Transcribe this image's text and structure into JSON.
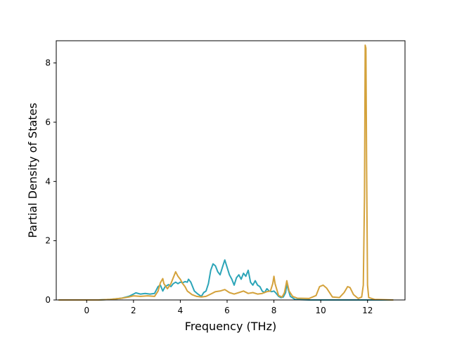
{
  "chart_data": {
    "type": "line",
    "title": "",
    "xlabel": "Frequency (THz)",
    "ylabel": "Partial Density of States",
    "xlim": [
      -1.3,
      13.6
    ],
    "ylim": [
      0,
      8.75
    ],
    "x_ticks": [
      0,
      2,
      4,
      6,
      8,
      10,
      12
    ],
    "y_ticks": [
      0,
      2,
      4,
      6,
      8
    ],
    "grid": false,
    "legend": "none",
    "series": [
      {
        "color": "#2ca5b8",
        "points": [
          [
            -1.2,
            0.0
          ],
          [
            0.5,
            0.0
          ],
          [
            1.0,
            0.02
          ],
          [
            1.5,
            0.06
          ],
          [
            1.8,
            0.12
          ],
          [
            2.0,
            0.2
          ],
          [
            2.1,
            0.24
          ],
          [
            2.3,
            0.2
          ],
          [
            2.5,
            0.22
          ],
          [
            2.7,
            0.2
          ],
          [
            2.9,
            0.22
          ],
          [
            3.05,
            0.45
          ],
          [
            3.15,
            0.5
          ],
          [
            3.25,
            0.3
          ],
          [
            3.35,
            0.45
          ],
          [
            3.5,
            0.52
          ],
          [
            3.6,
            0.45
          ],
          [
            3.7,
            0.55
          ],
          [
            3.8,
            0.6
          ],
          [
            3.9,
            0.55
          ],
          [
            4.0,
            0.6
          ],
          [
            4.1,
            0.58
          ],
          [
            4.2,
            0.62
          ],
          [
            4.3,
            0.6
          ],
          [
            4.35,
            0.7
          ],
          [
            4.45,
            0.6
          ],
          [
            4.6,
            0.3
          ],
          [
            4.75,
            0.2
          ],
          [
            4.9,
            0.12
          ],
          [
            5.0,
            0.25
          ],
          [
            5.1,
            0.3
          ],
          [
            5.2,
            0.55
          ],
          [
            5.3,
            1.0
          ],
          [
            5.4,
            1.22
          ],
          [
            5.5,
            1.15
          ],
          [
            5.6,
            0.95
          ],
          [
            5.7,
            0.85
          ],
          [
            5.8,
            1.1
          ],
          [
            5.9,
            1.35
          ],
          [
            6.0,
            1.1
          ],
          [
            6.1,
            0.85
          ],
          [
            6.2,
            0.7
          ],
          [
            6.3,
            0.5
          ],
          [
            6.4,
            0.75
          ],
          [
            6.5,
            0.85
          ],
          [
            6.6,
            0.7
          ],
          [
            6.7,
            0.9
          ],
          [
            6.8,
            0.8
          ],
          [
            6.9,
            1.0
          ],
          [
            7.0,
            0.6
          ],
          [
            7.1,
            0.5
          ],
          [
            7.2,
            0.65
          ],
          [
            7.3,
            0.5
          ],
          [
            7.4,
            0.45
          ],
          [
            7.5,
            0.3
          ],
          [
            7.6,
            0.25
          ],
          [
            7.7,
            0.38
          ],
          [
            7.8,
            0.3
          ],
          [
            7.9,
            0.28
          ],
          [
            8.0,
            0.3
          ],
          [
            8.1,
            0.22
          ],
          [
            8.2,
            0.12
          ],
          [
            8.3,
            0.08
          ],
          [
            8.4,
            0.1
          ],
          [
            8.5,
            0.25
          ],
          [
            8.55,
            0.55
          ],
          [
            8.6,
            0.38
          ],
          [
            8.7,
            0.12
          ],
          [
            8.9,
            0.02
          ],
          [
            9.5,
            0.0
          ],
          [
            10.0,
            0.0
          ],
          [
            11.0,
            0.0
          ],
          [
            11.6,
            0.0
          ],
          [
            11.8,
            0.0
          ],
          [
            12.0,
            0.0
          ],
          [
            13.1,
            0.0
          ]
        ]
      },
      {
        "color": "#d4a23b",
        "points": [
          [
            -1.2,
            0.0
          ],
          [
            0.5,
            0.0
          ],
          [
            1.0,
            0.02
          ],
          [
            1.5,
            0.06
          ],
          [
            1.8,
            0.1
          ],
          [
            2.0,
            0.14
          ],
          [
            2.3,
            0.12
          ],
          [
            2.6,
            0.14
          ],
          [
            2.9,
            0.12
          ],
          [
            3.05,
            0.3
          ],
          [
            3.15,
            0.58
          ],
          [
            3.25,
            0.72
          ],
          [
            3.3,
            0.55
          ],
          [
            3.45,
            0.38
          ],
          [
            3.6,
            0.55
          ],
          [
            3.7,
            0.75
          ],
          [
            3.8,
            0.95
          ],
          [
            3.9,
            0.8
          ],
          [
            4.0,
            0.7
          ],
          [
            4.1,
            0.55
          ],
          [
            4.2,
            0.45
          ],
          [
            4.3,
            0.3
          ],
          [
            4.5,
            0.18
          ],
          [
            4.7,
            0.12
          ],
          [
            4.9,
            0.1
          ],
          [
            5.1,
            0.12
          ],
          [
            5.3,
            0.2
          ],
          [
            5.5,
            0.28
          ],
          [
            5.7,
            0.3
          ],
          [
            5.9,
            0.35
          ],
          [
            6.1,
            0.25
          ],
          [
            6.3,
            0.2
          ],
          [
            6.5,
            0.25
          ],
          [
            6.7,
            0.3
          ],
          [
            6.9,
            0.22
          ],
          [
            7.1,
            0.25
          ],
          [
            7.3,
            0.2
          ],
          [
            7.5,
            0.22
          ],
          [
            7.7,
            0.28
          ],
          [
            7.85,
            0.3
          ],
          [
            7.95,
            0.55
          ],
          [
            8.0,
            0.8
          ],
          [
            8.05,
            0.55
          ],
          [
            8.2,
            0.15
          ],
          [
            8.35,
            0.1
          ],
          [
            8.45,
            0.25
          ],
          [
            8.55,
            0.65
          ],
          [
            8.65,
            0.3
          ],
          [
            8.8,
            0.12
          ],
          [
            9.0,
            0.06
          ],
          [
            9.5,
            0.05
          ],
          [
            9.8,
            0.15
          ],
          [
            9.95,
            0.45
          ],
          [
            10.1,
            0.5
          ],
          [
            10.25,
            0.4
          ],
          [
            10.5,
            0.1
          ],
          [
            10.8,
            0.08
          ],
          [
            11.0,
            0.25
          ],
          [
            11.15,
            0.45
          ],
          [
            11.25,
            0.42
          ],
          [
            11.4,
            0.18
          ],
          [
            11.6,
            0.05
          ],
          [
            11.75,
            0.1
          ],
          [
            11.82,
            0.5
          ],
          [
            11.87,
            3.5
          ],
          [
            11.9,
            8.6
          ],
          [
            11.93,
            8.5
          ],
          [
            11.96,
            4.5
          ],
          [
            12.0,
            0.5
          ],
          [
            12.05,
            0.08
          ],
          [
            12.3,
            0.02
          ],
          [
            13.1,
            0.0
          ]
        ]
      }
    ]
  }
}
